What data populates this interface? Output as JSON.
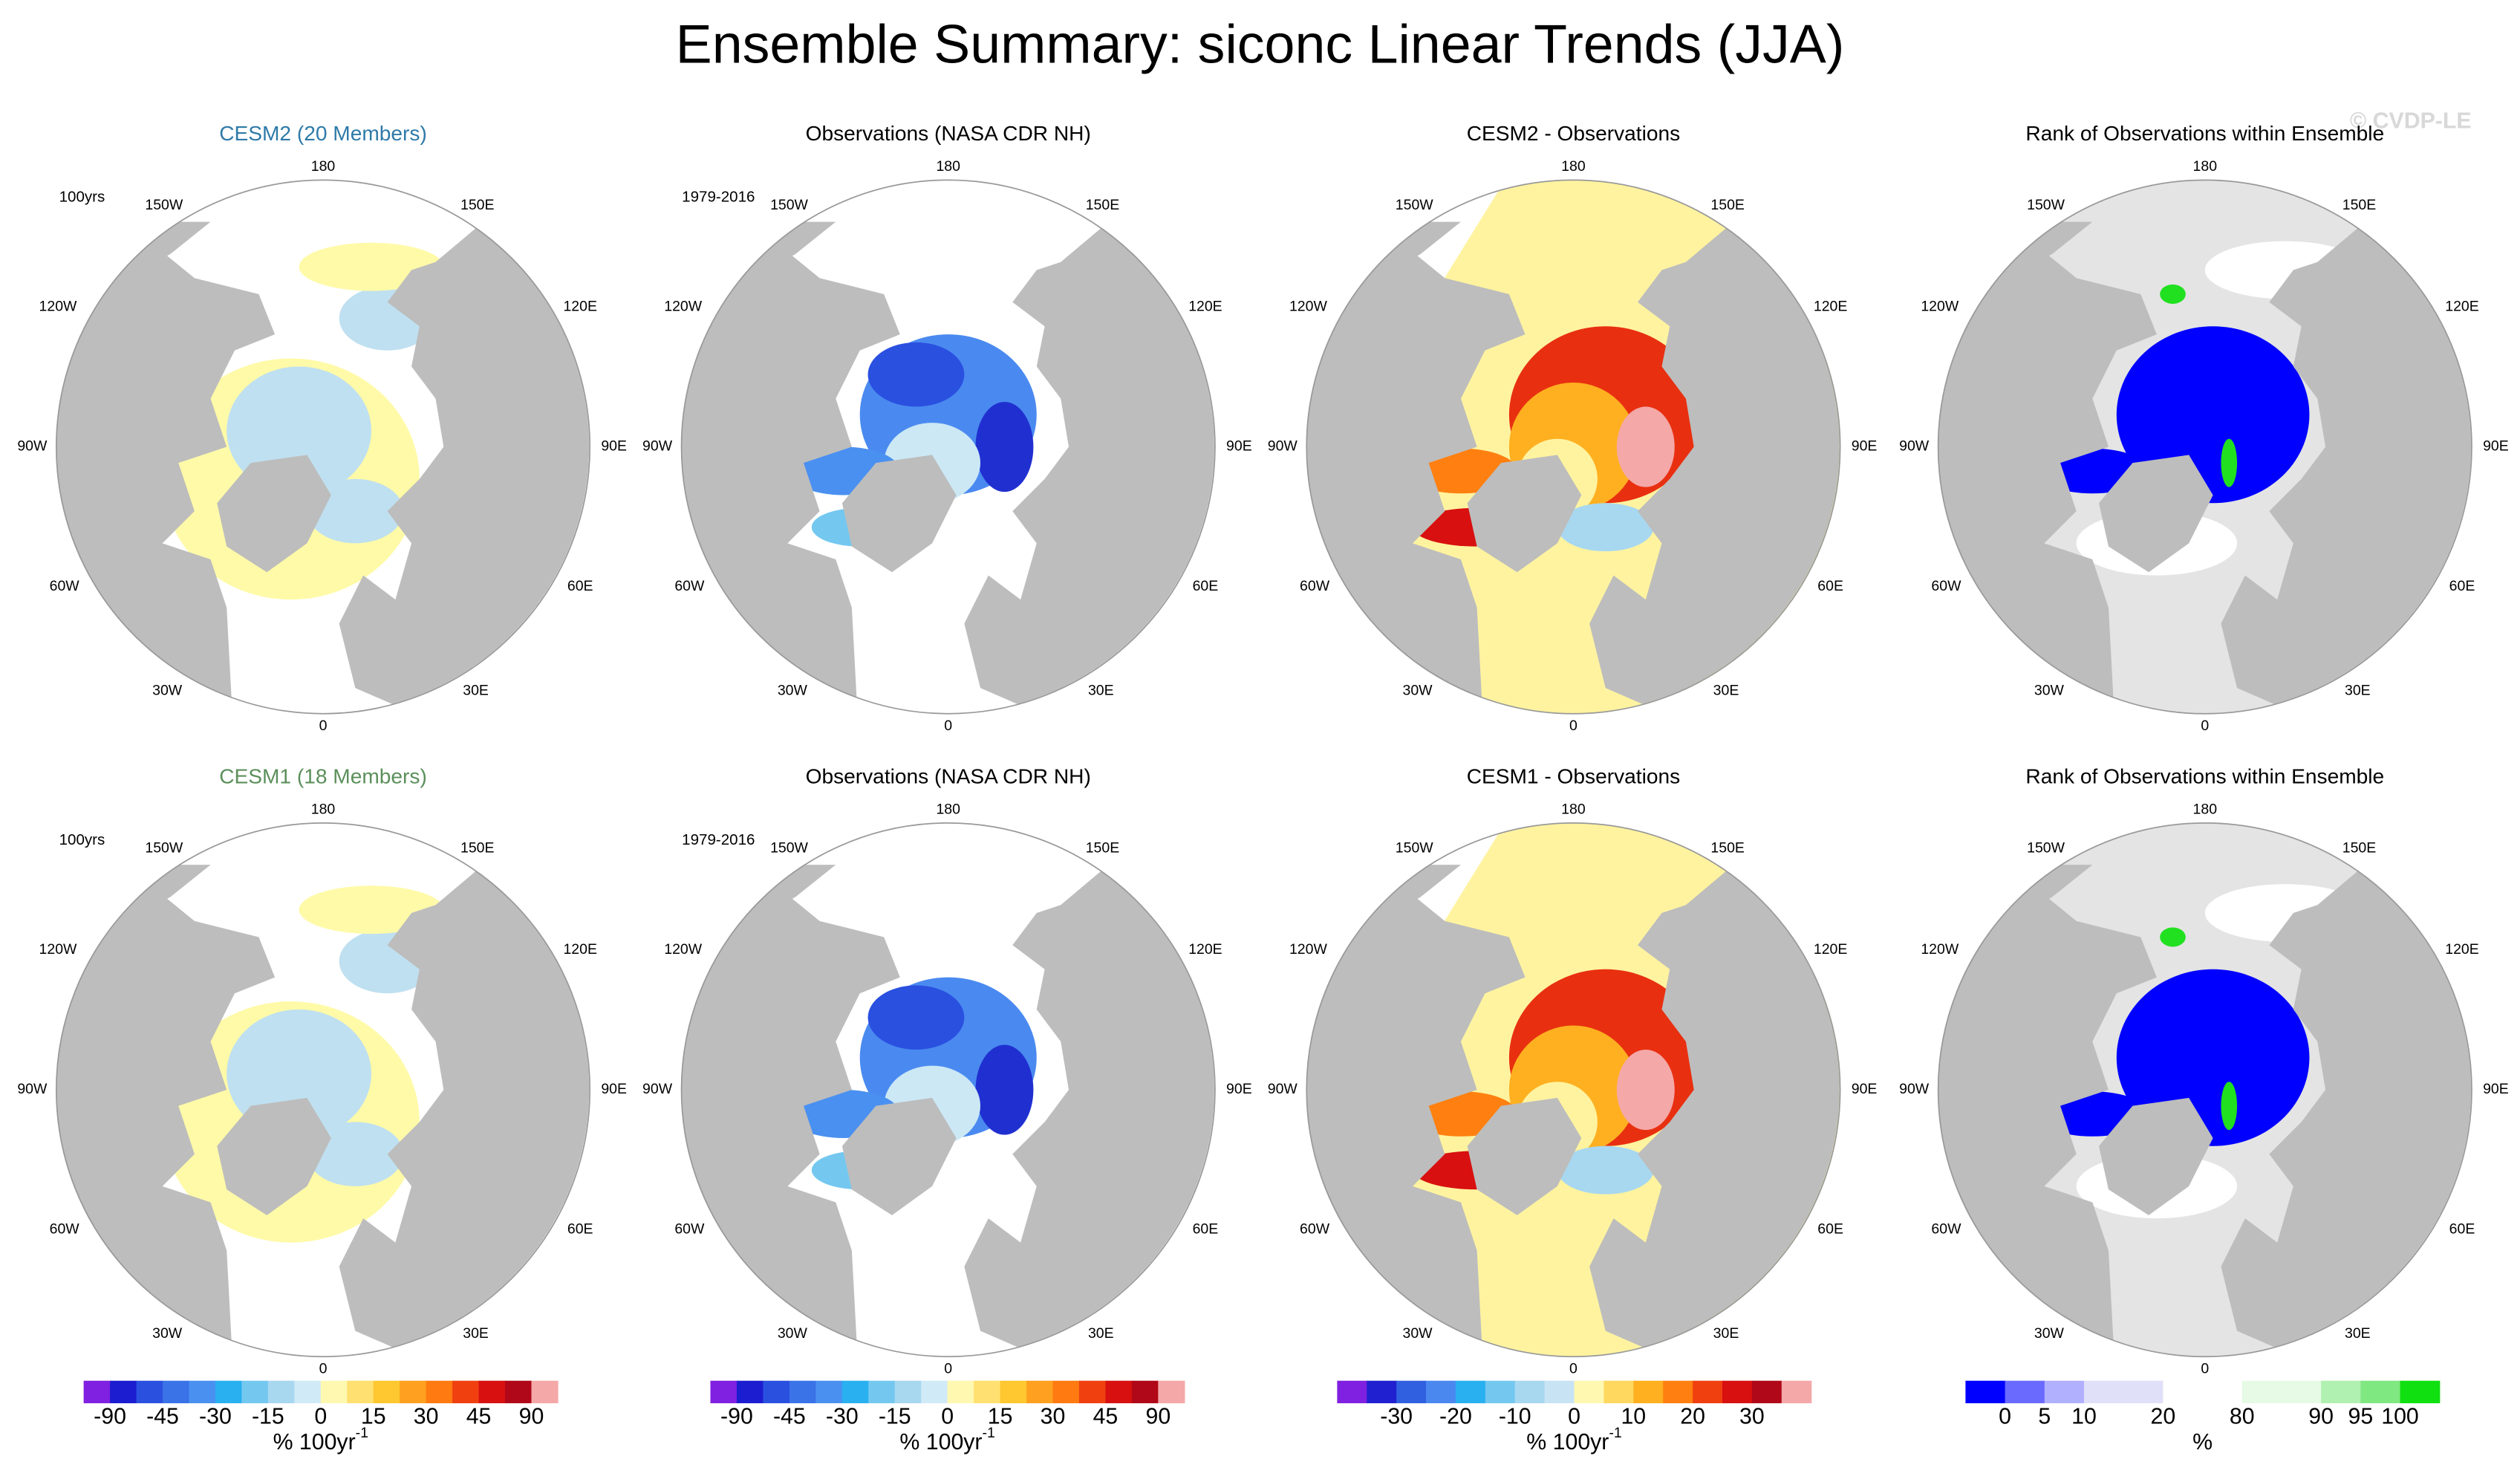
{
  "title": "Ensemble Summary: siconc Linear Trends (JJA)",
  "watermark": "© CVDP-LE",
  "longitude_labels": [
    "180",
    "150E",
    "120E",
    "90E",
    "60E",
    "30E",
    "0",
    "30W",
    "60W",
    "90W",
    "120W",
    "150W"
  ],
  "panels": [
    {
      "title": "CESM2 (20 Members)",
      "title_color": "#2e7aa8",
      "note": "100yrs"
    },
    {
      "title": "Observations (NASA CDR NH)",
      "title_color": "#000000",
      "note": "1979-2016"
    },
    {
      "title": "CESM2 - Observations",
      "title_color": "#000000"
    },
    {
      "title": "Rank of Observations within Ensemble",
      "title_color": "#000000"
    },
    {
      "title": "CESM1 (18 Members)",
      "title_color": "#5b8f5b",
      "note": "100yrs"
    },
    {
      "title": "Observations (NASA CDR NH)",
      "title_color": "#000000",
      "note": "1979-2016"
    },
    {
      "title": "CESM1 - Observations",
      "title_color": "#000000"
    },
    {
      "title": "Rank of Observations within Ensemble",
      "title_color": "#000000"
    }
  ],
  "colorbars": [
    {
      "colors": [
        "#8020e0",
        "#1c1cd0",
        "#2a50e0",
        "#3a72e8",
        "#4a90f0",
        "#28b0f0",
        "#74c8f0",
        "#a8d8f0",
        "#d0eaf8",
        "#fff8b0",
        "#ffe070",
        "#ffc830",
        "#ffa020",
        "#ff7a10",
        "#f04010",
        "#d81010",
        "#b00818",
        "#f4a8a8"
      ],
      "ticks": [
        -90,
        -45,
        -30,
        -15,
        0,
        15,
        30,
        45,
        90
      ],
      "unit": "% 100yr",
      "unit_sup": "-1"
    },
    {
      "colors": [
        "#8020e0",
        "#1c1cd0",
        "#2a50e0",
        "#3a72e8",
        "#4a90f0",
        "#28b0f0",
        "#74c8f0",
        "#a8d8f0",
        "#d0eaf8",
        "#fff8b0",
        "#ffe070",
        "#ffc830",
        "#ffa020",
        "#ff7a10",
        "#f04010",
        "#d81010",
        "#b00818",
        "#f4a8a8"
      ],
      "ticks": [
        -90,
        -45,
        -30,
        -15,
        0,
        15,
        30,
        45,
        90
      ],
      "unit": "% 100yr",
      "unit_sup": "-1"
    },
    {
      "colors": [
        "#8020e0",
        "#2020d0",
        "#3060e0",
        "#4a88f0",
        "#28b0f0",
        "#74c8f0",
        "#a8d8f0",
        "#c8e4f4",
        "#fff8b0",
        "#ffd860",
        "#ffb020",
        "#ff8010",
        "#f04010",
        "#d81010",
        "#b00818",
        "#f4a8a8"
      ],
      "ticks": [
        -30,
        -20,
        -10,
        0,
        10,
        20,
        30
      ],
      "unit": "% 100yr",
      "unit_sup": "-1"
    },
    {
      "colors": [
        "#0000ff",
        "#6a6aff",
        "#b0b0ff",
        "#e0e0f8",
        "#e0e0f8",
        "#ffffff",
        "#ffffff",
        "#e6fae6",
        "#e6fae6",
        "#b0f0b0",
        "#80e880",
        "#10e010"
      ],
      "ticks": [
        0,
        5,
        10,
        20,
        80,
        90,
        95,
        100
      ],
      "unit": "%"
    }
  ]
}
